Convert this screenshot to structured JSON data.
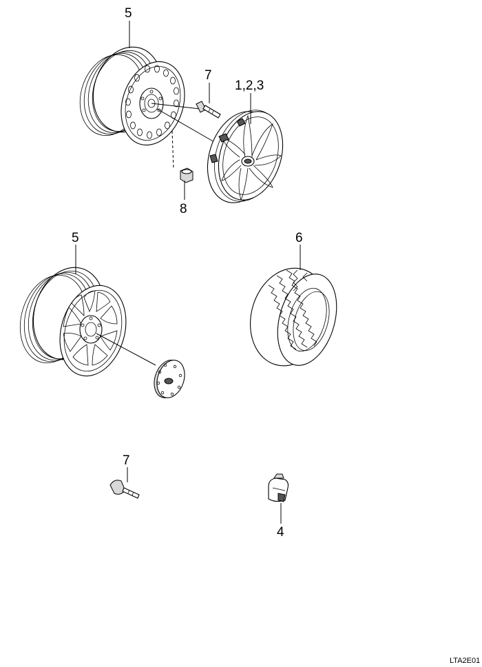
{
  "callouts": {
    "steel_wheel": "5",
    "valve_top": "7",
    "wheel_cover": "1,2,3",
    "lug_nut": "8",
    "alloy_wheel": "5",
    "tire": "6",
    "valve_bottom": "7",
    "balance_weight": "4"
  },
  "figure_code": "LTA2E01"
}
